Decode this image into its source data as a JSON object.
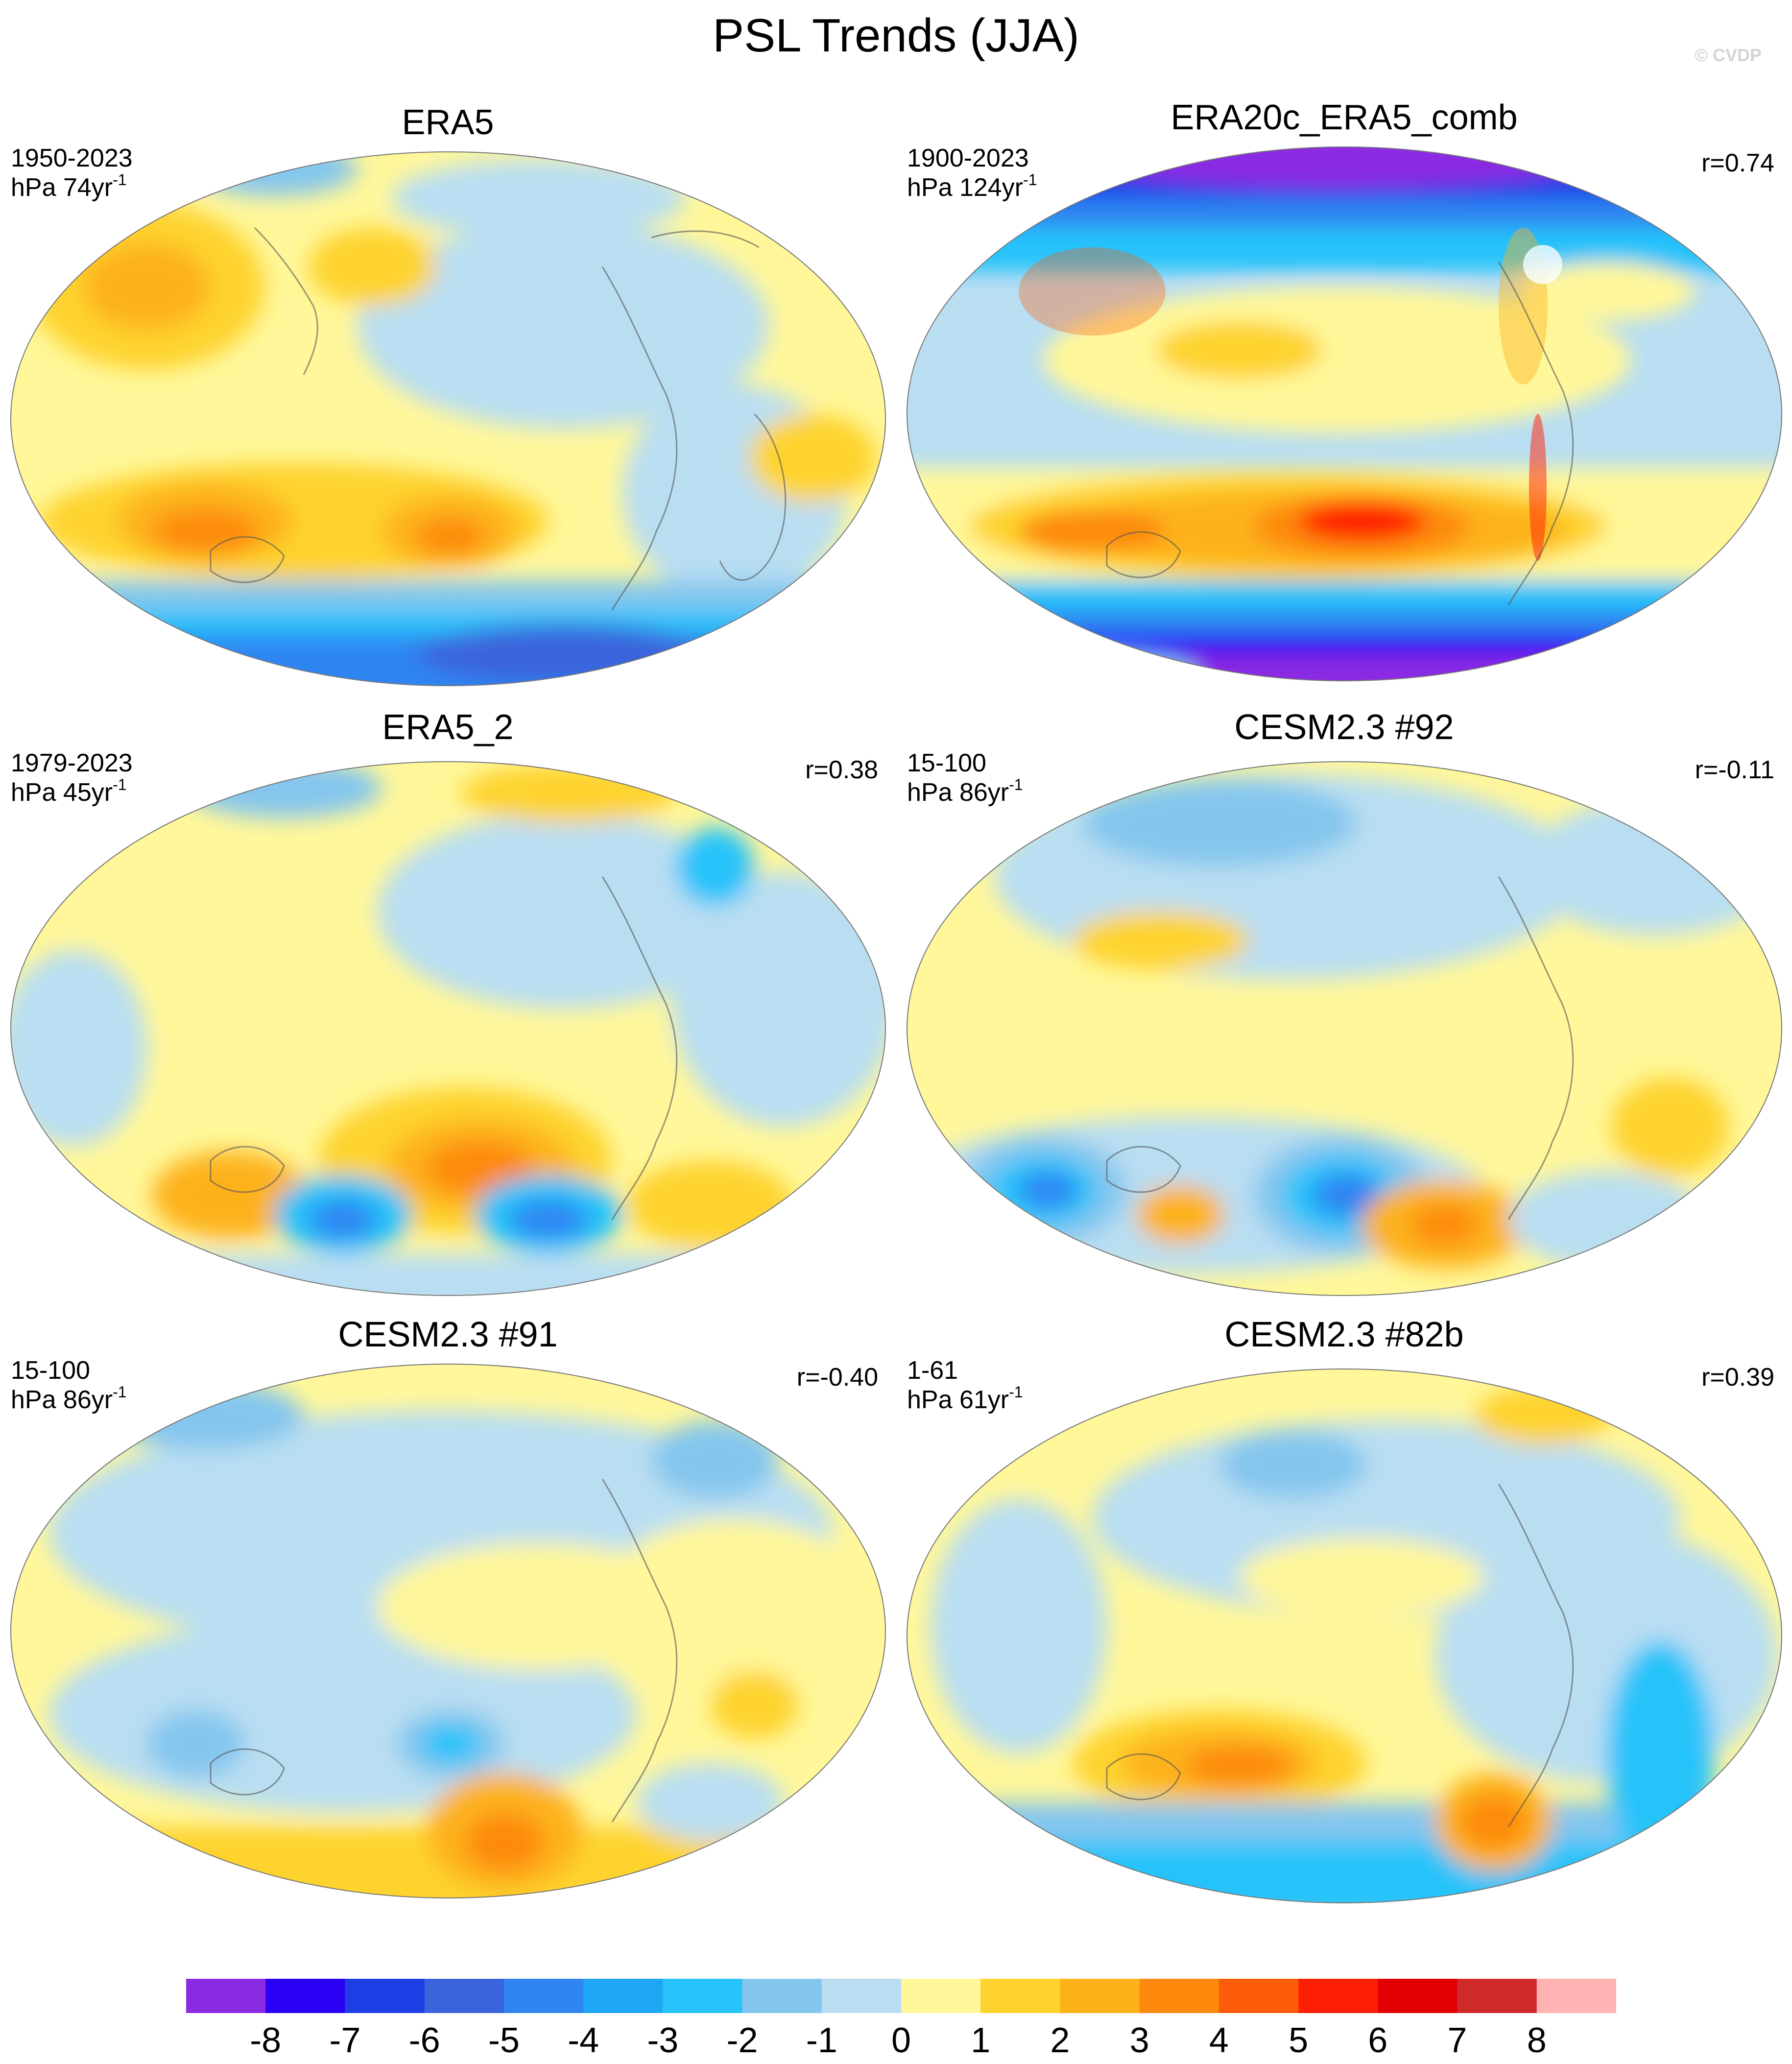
{
  "title": "PSL Trends (JJA)",
  "copyright": "© CVDP",
  "panels": [
    {
      "title": "ERA5",
      "years": "1950-2023",
      "units_prefix": "hPa 74yr",
      "units_exp": "-1",
      "r": ""
    },
    {
      "title": "ERA20c_ERA5_comb",
      "years": "1900-2023",
      "units_prefix": "hPa 124yr",
      "units_exp": "-1",
      "r": "r=0.74"
    },
    {
      "title": "ERA5_2",
      "years": "1979-2023",
      "units_prefix": "hPa 45yr",
      "units_exp": "-1",
      "r": "r=0.38"
    },
    {
      "title": "CESM2.3 #92",
      "years": "15-100",
      "units_prefix": "hPa 86yr",
      "units_exp": "-1",
      "r": "r=-0.11"
    },
    {
      "title": "CESM2.3 #91",
      "years": "15-100",
      "units_prefix": "hPa 86yr",
      "units_exp": "-1",
      "r": "r=-0.40"
    },
    {
      "title": "CESM2.3 #82b",
      "years": "1-61",
      "units_prefix": "hPa 61yr",
      "units_exp": "-1",
      "r": "r=0.39"
    }
  ],
  "colorbar": {
    "labels": [
      "-8",
      "-7",
      "-6",
      "-5",
      "-4",
      "-3",
      "-2",
      "-1",
      "0",
      "1",
      "2",
      "3",
      "4",
      "5",
      "6",
      "7",
      "8"
    ],
    "colors": [
      "#8a2be2",
      "#2b00f5",
      "#1f3fe6",
      "#3a64dc",
      "#2f85f2",
      "#1fa6f4",
      "#27c3fa",
      "#84c6ee",
      "#b9def2",
      "#fff79a",
      "#fed32d",
      "#fdb21a",
      "#fd8a0c",
      "#ff5c0a",
      "#ff1f06",
      "#e30005",
      "#cf2a2a",
      "#ffb3b3"
    ]
  },
  "projection": "Robinson, Pacific-centred",
  "variable": "PSL"
}
